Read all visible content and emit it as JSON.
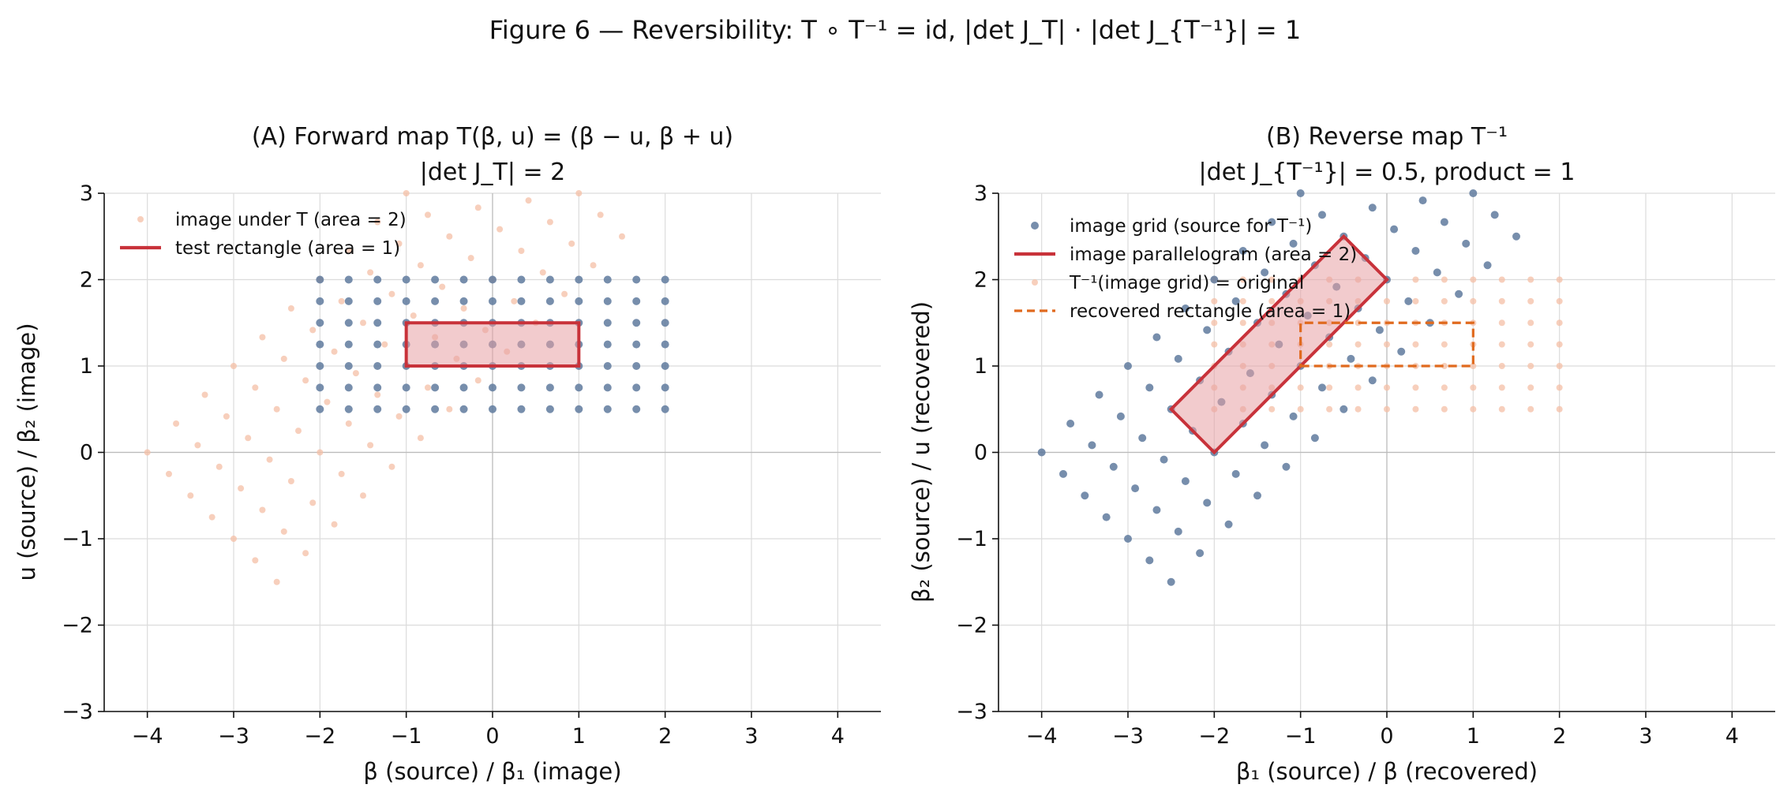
{
  "figure_title": "Figure 6 — Reversibility: T ∘ T⁻¹ = id, |det J_T| · |det J_{T⁻¹}| = 1",
  "colors": {
    "grid_dots": "#5f7a9e",
    "image_dots": "#f4bfa6",
    "shape_edge": "#c8323a",
    "shape_fill": "#e8a0a4",
    "recovered": "#e06a1e"
  },
  "chart_data": [
    {
      "type": "scatter",
      "panel": "A",
      "title_line1": "(A) Forward map T(β, u) = (β − u, β + u)",
      "title_line2": "|det J_T| = 2",
      "xlabel": "β (source) / β₁ (image)",
      "ylabel": "u (source) / β₂ (image)",
      "xlim": [
        -4.5,
        4.5
      ],
      "ylim": [
        -3,
        3
      ],
      "xticks": [
        -4,
        -3,
        -2,
        -1,
        0,
        1,
        2,
        3,
        4
      ],
      "yticks": [
        -3,
        -2,
        -1,
        0,
        1,
        2,
        3
      ],
      "xtick_labels": [
        "−4",
        "−3",
        "−2",
        "−1",
        "0",
        "1",
        "2",
        "3",
        "4"
      ],
      "ytick_labels": [
        "−3",
        "−2",
        "−1",
        "0",
        "1",
        "2",
        "3"
      ],
      "grid": true,
      "legend_position": "top-left",
      "series": [
        {
          "legend": "",
          "role": "source grid",
          "marker": "dot",
          "color": "#5f7a9e",
          "grid_x": [
            -2,
            -1.6667,
            -1.3333,
            -1,
            -0.6667,
            -0.3333,
            0,
            0.3333,
            0.6667,
            1,
            1.3333,
            1.6667,
            2
          ],
          "grid_y": [
            0.5,
            0.75,
            1,
            1.25,
            1.5,
            1.75,
            2
          ]
        },
        {
          "legend": "image under T (area = 2)",
          "role": "image of grid under T",
          "marker": "dot",
          "color": "#f4bfa6",
          "transform": "T"
        },
        {
          "legend": "test rectangle (area = 1)",
          "role": "polygon",
          "color": "#c8323a",
          "fill": true,
          "points": [
            [
              -1,
              1
            ],
            [
              1,
              1
            ],
            [
              1,
              1.5
            ],
            [
              -1,
              1.5
            ]
          ]
        }
      ]
    },
    {
      "type": "scatter",
      "panel": "B",
      "title_line1": "(B) Reverse map T⁻¹",
      "title_line2": "|det J_{T⁻¹}| = 0.5, product = 1",
      "xlabel": "β₁ (source) / β (recovered)",
      "ylabel": "β₂ (source) / u (recovered)",
      "xlim": [
        -4.5,
        4.5
      ],
      "ylim": [
        -3,
        3
      ],
      "xticks": [
        -4,
        -3,
        -2,
        -1,
        0,
        1,
        2,
        3,
        4
      ],
      "yticks": [
        -3,
        -2,
        -1,
        0,
        1,
        2,
        3
      ],
      "xtick_labels": [
        "−4",
        "−3",
        "−2",
        "−1",
        "0",
        "1",
        "2",
        "3",
        "4"
      ],
      "ytick_labels": [
        "−3",
        "−2",
        "−1",
        "0",
        "1",
        "2",
        "3"
      ],
      "grid": true,
      "legend_position": "top-left",
      "series": [
        {
          "legend": "image grid (source for T⁻¹)",
          "role": "image grid",
          "marker": "dot",
          "color": "#5f7a9e",
          "transform": "T"
        },
        {
          "legend": "image parallelogram (area = 2)",
          "role": "polygon",
          "color": "#c8323a",
          "fill": true,
          "points": [
            [
              -2,
              0
            ],
            [
              0,
              2
            ],
            [
              -0.5,
              2.5
            ],
            [
              -2.5,
              0.5
            ]
          ]
        },
        {
          "legend": "T⁻¹(image grid) = original",
          "role": "recovered grid",
          "marker": "dot",
          "color": "#f4bfa6",
          "transform": "identity"
        },
        {
          "legend": "recovered rectangle (area = 1)",
          "role": "polygon-dashed",
          "color": "#e06a1e",
          "fill": false,
          "points": [
            [
              -1,
              1
            ],
            [
              1,
              1
            ],
            [
              1,
              1.5
            ],
            [
              -1,
              1.5
            ]
          ]
        }
      ]
    }
  ]
}
